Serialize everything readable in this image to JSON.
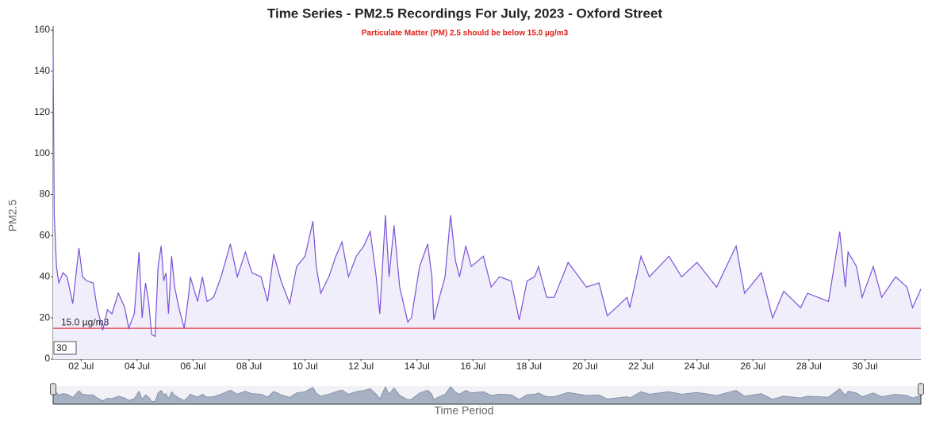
{
  "chart_data": {
    "type": "line",
    "title": "Time Series - PM2.5 Recordings For July, 2023 - Oxford Street",
    "subtitle": "Particulate Matter (PM) 2.5 should be below 15.0 µg/m3",
    "y_label": "PM2.5",
    "x_label": "Time Period",
    "roll_period": 30,
    "threshold": {
      "value": 15,
      "label": "15.0 µg/m3"
    },
    "threshold_color": "#e0202a",
    "series": [
      {
        "name": "PM2.5",
        "color": "#7b52d6",
        "fill": "#f1eefc",
        "x": [
          1.0,
          1.04,
          1.12,
          1.2,
          1.35,
          1.5,
          1.7,
          1.92,
          2.05,
          2.2,
          2.43,
          2.57,
          2.77,
          2.94,
          3.1,
          3.33,
          3.56,
          3.7,
          3.9,
          4.07,
          4.18,
          4.3,
          4.41,
          4.52,
          4.64,
          4.75,
          4.86,
          4.95,
          5.03,
          5.12,
          5.23,
          5.34,
          5.49,
          5.68,
          5.83,
          5.9,
          6.16,
          6.33,
          6.5,
          6.73,
          7.0,
          7.33,
          7.58,
          7.87,
          8.1,
          8.43,
          8.66,
          8.88,
          9.14,
          9.45,
          9.7,
          10.0,
          10.28,
          10.4,
          10.56,
          10.85,
          11.1,
          11.32,
          11.55,
          11.83,
          12.1,
          12.33,
          12.54,
          12.67,
          12.87,
          13.0,
          13.18,
          13.38,
          13.67,
          13.8,
          14.09,
          14.38,
          14.53,
          14.6,
          14.8,
          15.0,
          15.2,
          15.37,
          15.52,
          15.74,
          15.94,
          16.37,
          16.65,
          16.94,
          17.36,
          17.65,
          17.93,
          18.2,
          18.34,
          18.63,
          18.9,
          19.4,
          20.05,
          20.5,
          20.8,
          21.5,
          21.6,
          22.0,
          22.3,
          23.0,
          23.45,
          24.0,
          24.7,
          25.4,
          25.7,
          26.3,
          26.7,
          27.1,
          27.7,
          27.95,
          28.7,
          29.1,
          29.3,
          29.4,
          29.7,
          29.9,
          30.3,
          30.6,
          31.1,
          31.5,
          31.7,
          32.0
        ],
        "values": [
          148,
          70,
          45,
          37,
          42,
          40,
          27,
          54,
          40,
          38,
          37,
          25,
          14,
          24,
          22,
          32,
          25,
          15,
          22,
          52,
          20,
          37,
          28,
          12,
          11,
          45,
          55,
          38,
          42,
          22,
          50,
          35,
          25,
          15,
          30,
          40,
          28,
          40,
          28,
          30,
          40,
          56,
          40,
          52,
          42,
          40,
          28,
          51,
          38,
          27,
          45,
          50,
          67,
          45,
          32,
          40,
          50,
          57,
          40,
          50,
          55,
          62,
          40,
          22,
          70,
          40,
          65,
          35,
          18,
          20,
          45,
          56,
          40,
          19,
          30,
          40,
          70,
          48,
          40,
          55,
          45,
          50,
          35,
          40,
          38,
          19,
          38,
          40,
          45,
          30,
          30,
          47,
          35,
          37,
          21,
          30,
          25,
          50,
          40,
          50,
          40,
          47,
          35,
          55,
          32,
          42,
          20,
          33,
          25,
          32,
          28,
          62,
          35,
          52,
          45,
          30,
          45,
          30,
          40,
          35,
          25,
          34
        ]
      }
    ],
    "xlim": [
      1,
      32
    ],
    "xticks": [
      {
        "value": 2,
        "label": "02 Jul"
      },
      {
        "value": 4,
        "label": "04 Jul"
      },
      {
        "value": 6,
        "label": "06 Jul"
      },
      {
        "value": 8,
        "label": "08 Jul"
      },
      {
        "value": 10,
        "label": "10 Jul"
      },
      {
        "value": 12,
        "label": "12 Jul"
      },
      {
        "value": 14,
        "label": "14 Jul"
      },
      {
        "value": 16,
        "label": "16 Jul"
      },
      {
        "value": 18,
        "label": "18 Jul"
      },
      {
        "value": 20,
        "label": "20 Jul"
      },
      {
        "value": 22,
        "label": "22 Jul"
      },
      {
        "value": 24,
        "label": "24 Jul"
      },
      {
        "value": 26,
        "label": "26 Jul"
      },
      {
        "value": 28,
        "label": "28 Jul"
      },
      {
        "value": 30,
        "label": "30 Jul"
      }
    ],
    "ylim": [
      0,
      160
    ],
    "yticks": [
      0,
      20,
      40,
      60,
      80,
      100,
      120,
      140,
      160
    ]
  }
}
